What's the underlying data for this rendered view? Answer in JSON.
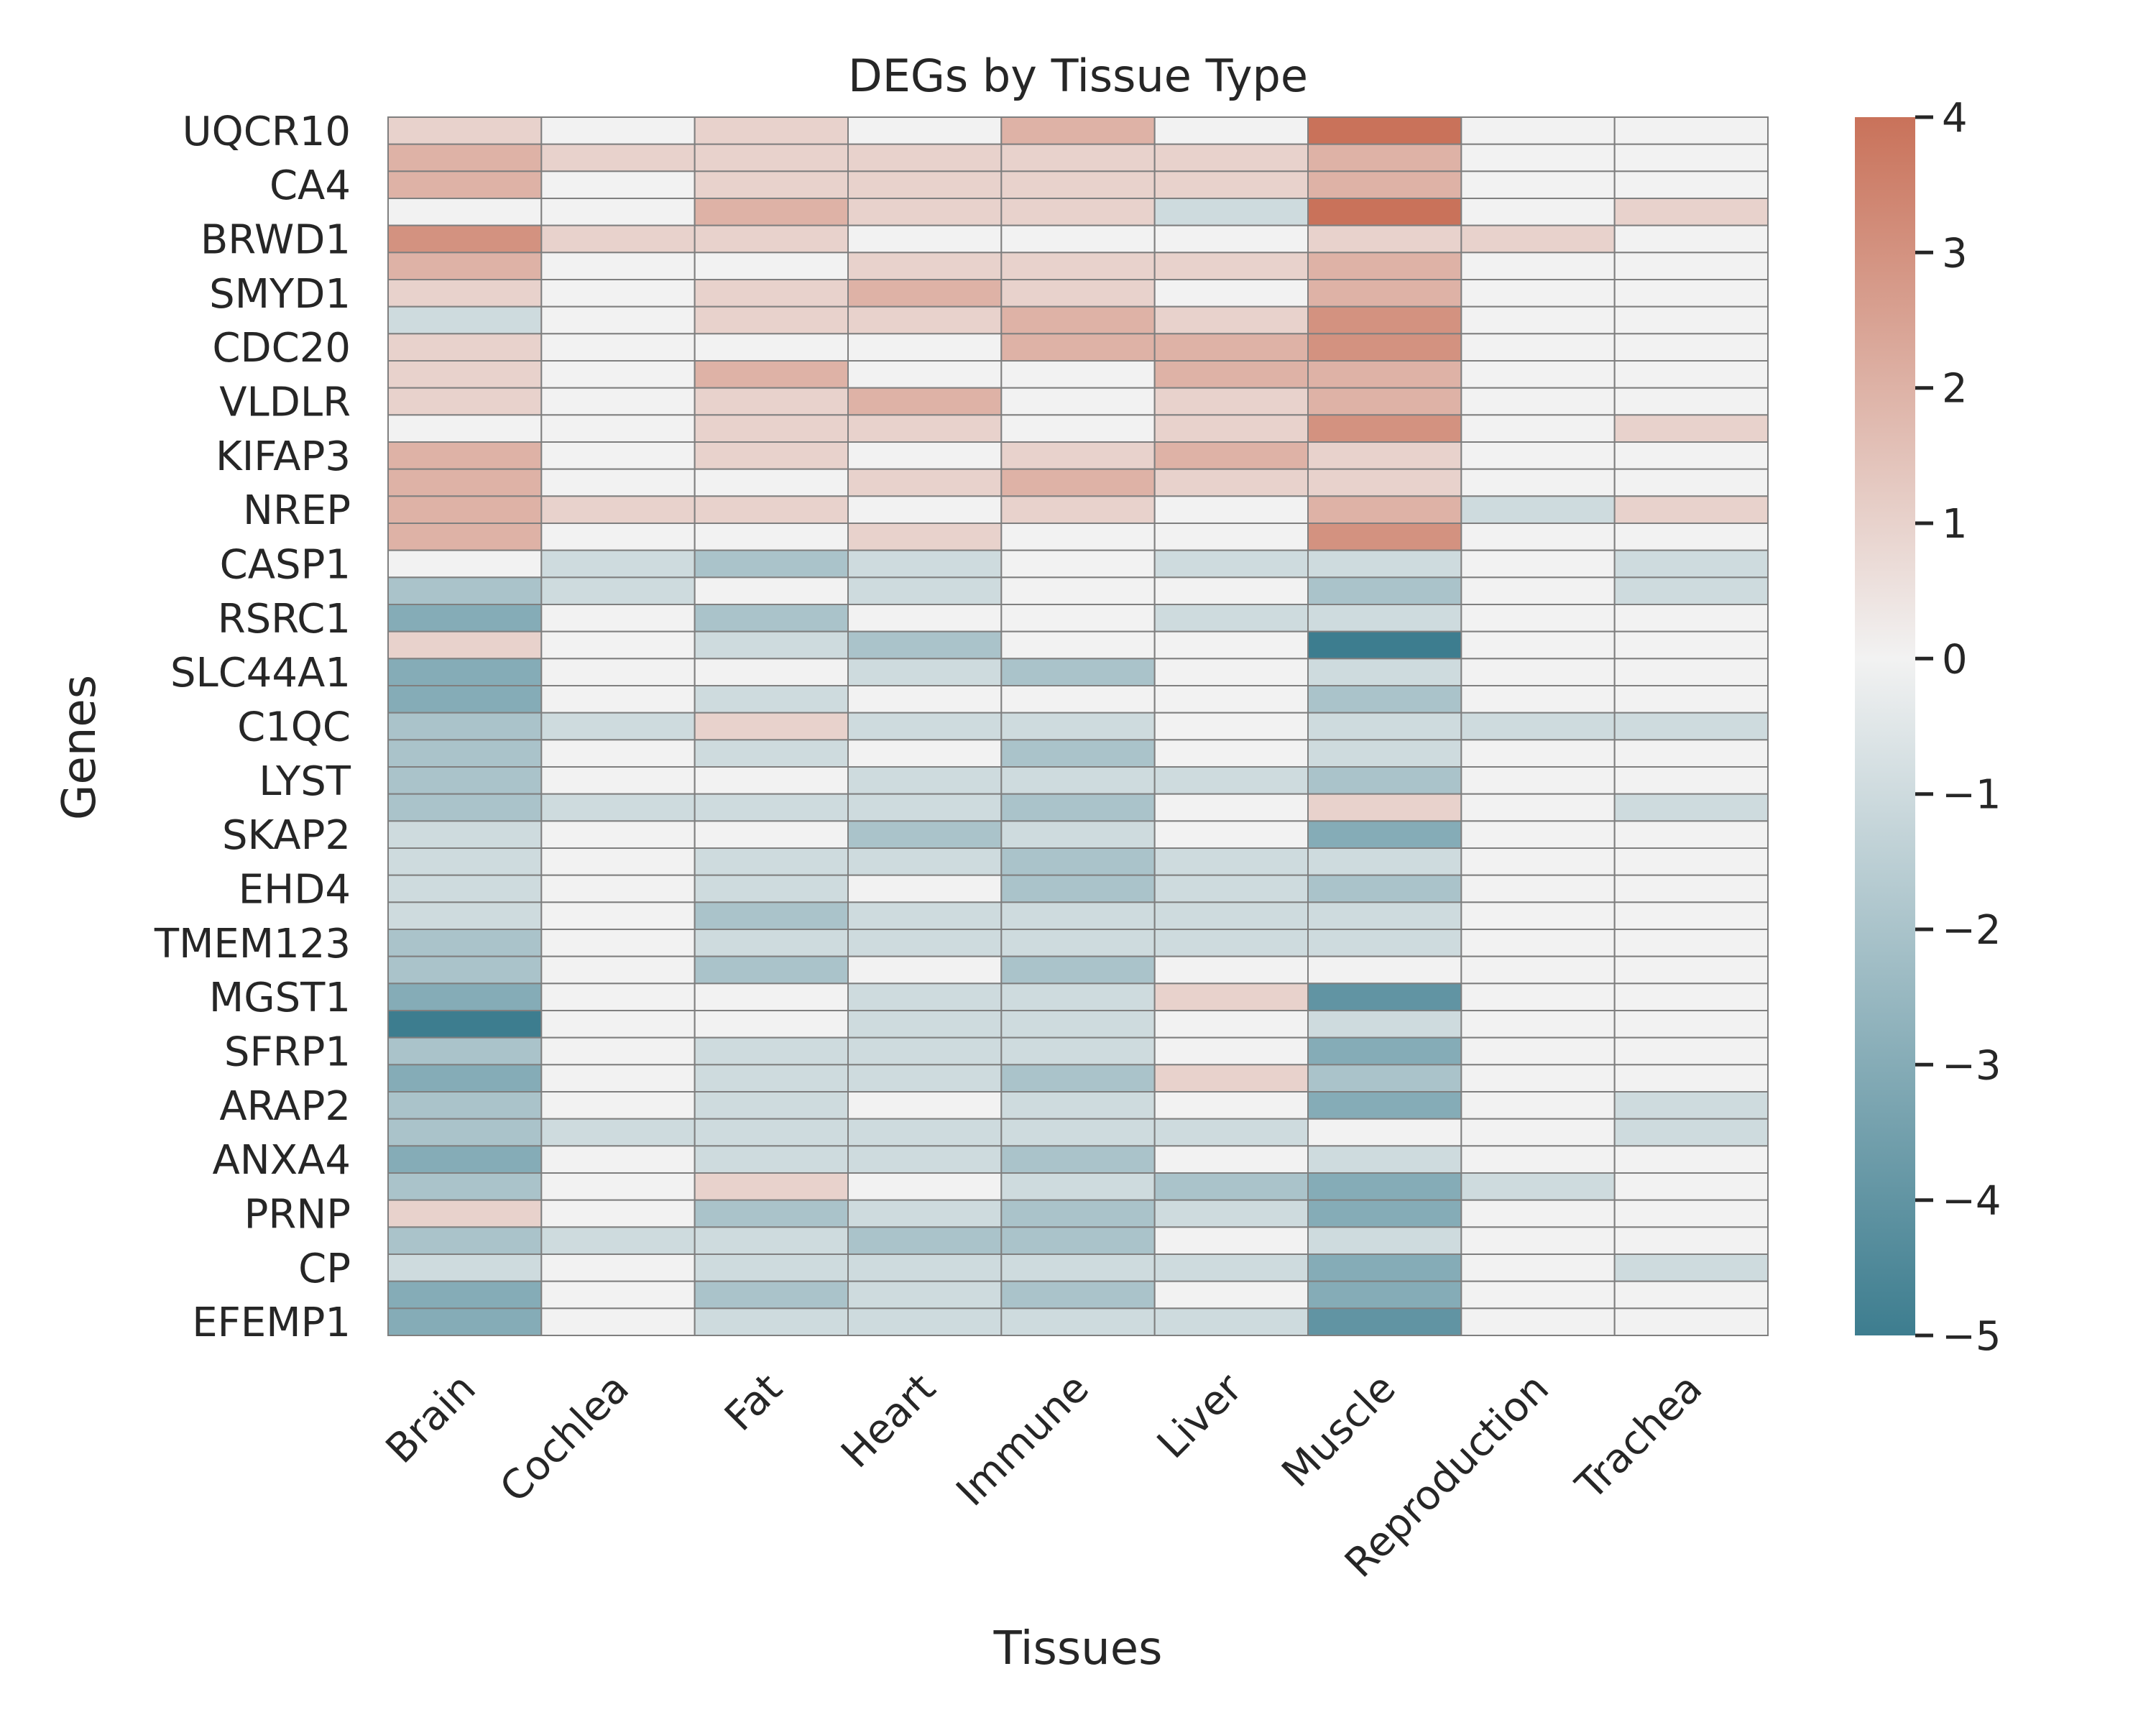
{
  "chart_data": {
    "type": "heatmap",
    "title": "DEGs by Tissue Type",
    "xlabel": "Tissues",
    "ylabel": "Genes",
    "x_categories": [
      "Brain",
      "Cochlea",
      "Fat",
      "Heart",
      "Immune",
      "Liver",
      "Muscle",
      "Reproduction",
      "Trachea"
    ],
    "y_tick_labels": [
      "UQCR10",
      "CA4",
      "BRWD1",
      "SMYD1",
      "CDC20",
      "VLDLR",
      "KIFAP3",
      "NREP",
      "CASP1",
      "RSRC1",
      "SLC44A1",
      "C1QC",
      "LYST",
      "SKAP2",
      "EHD4",
      "TMEM123",
      "MGST1",
      "SFRP1",
      "ARAP2",
      "ANXA4",
      "PRNP",
      "CP",
      "EFEMP1"
    ],
    "row_count": 45,
    "values": [
      [
        1,
        0,
        1,
        0,
        2,
        0,
        4,
        0,
        0
      ],
      [
        2,
        1,
        1,
        1,
        1,
        1,
        2,
        0,
        0
      ],
      [
        2,
        0,
        1,
        1,
        1,
        1,
        2,
        0,
        0
      ],
      [
        0,
        0,
        2,
        1,
        1,
        -1,
        4,
        0,
        1
      ],
      [
        3,
        1,
        1,
        0,
        0,
        0,
        1,
        1,
        0
      ],
      [
        2,
        0,
        0,
        1,
        1,
        1,
        2,
        0,
        0
      ],
      [
        1,
        0,
        1,
        2,
        1,
        0,
        2,
        0,
        0
      ],
      [
        -1,
        0,
        1,
        1,
        2,
        1,
        3,
        0,
        0
      ],
      [
        1,
        0,
        0,
        0,
        2,
        2,
        3,
        0,
        0
      ],
      [
        1,
        0,
        2,
        0,
        0,
        2,
        2,
        0,
        0
      ],
      [
        1,
        0,
        1,
        2,
        0,
        1,
        2,
        0,
        0
      ],
      [
        0,
        0,
        1,
        1,
        0,
        1,
        3,
        0,
        1
      ],
      [
        2,
        0,
        1,
        0,
        1,
        2,
        1,
        0,
        0
      ],
      [
        2,
        0,
        0,
        1,
        2,
        1,
        1,
        0,
        0
      ],
      [
        2,
        1,
        1,
        0,
        1,
        0,
        2,
        -1,
        1
      ],
      [
        2,
        0,
        0,
        1,
        0,
        0,
        3,
        0,
        0
      ],
      [
        0,
        -1,
        -2,
        -1,
        0,
        -1,
        -1,
        0,
        -1
      ],
      [
        -2,
        -1,
        0,
        -1,
        0,
        0,
        -2,
        0,
        -1
      ],
      [
        -3,
        0,
        -2,
        0,
        0,
        -1,
        -1,
        0,
        0
      ],
      [
        1,
        0,
        -1,
        -2,
        0,
        0,
        -5,
        0,
        0
      ],
      [
        -3,
        0,
        0,
        -1,
        -2,
        0,
        -1,
        0,
        0
      ],
      [
        -3,
        0,
        -1,
        0,
        0,
        0,
        -2,
        0,
        0
      ],
      [
        -2,
        -1,
        1,
        -1,
        -1,
        0,
        -1,
        -1,
        -1
      ],
      [
        -2,
        0,
        -1,
        0,
        -2,
        0,
        -1,
        0,
        0
      ],
      [
        -2,
        0,
        0,
        -1,
        -1,
        -1,
        -2,
        0,
        0
      ],
      [
        -2,
        -1,
        -1,
        -1,
        -2,
        0,
        1,
        0,
        -1
      ],
      [
        -1,
        0,
        0,
        -2,
        -1,
        0,
        -3,
        0,
        0
      ],
      [
        -1,
        0,
        -1,
        -1,
        -2,
        -1,
        -1,
        0,
        0
      ],
      [
        -1,
        0,
        -1,
        0,
        -2,
        -1,
        -2,
        0,
        0
      ],
      [
        -1,
        0,
        -2,
        -1,
        -1,
        -1,
        -1,
        0,
        0
      ],
      [
        -2,
        0,
        -1,
        -1,
        -1,
        -1,
        -1,
        0,
        0
      ],
      [
        -2,
        0,
        -2,
        0,
        -2,
        0,
        0,
        0,
        0
      ],
      [
        -3,
        0,
        0,
        -1,
        -1,
        1,
        -4,
        0,
        0
      ],
      [
        -5,
        0,
        0,
        -1,
        -1,
        0,
        -1,
        0,
        0
      ],
      [
        -2,
        0,
        -1,
        -1,
        -1,
        0,
        -3,
        0,
        0
      ],
      [
        -3,
        0,
        -1,
        -1,
        -2,
        1,
        -2,
        0,
        0
      ],
      [
        -2,
        0,
        -1,
        0,
        -1,
        0,
        -3,
        0,
        -1
      ],
      [
        -2,
        -1,
        -1,
        -1,
        -1,
        -1,
        0,
        0,
        -1
      ],
      [
        -3,
        0,
        -1,
        -1,
        -2,
        0,
        -1,
        0,
        0
      ],
      [
        -2,
        0,
        1,
        0,
        -1,
        -2,
        -3,
        -1,
        0
      ],
      [
        1,
        0,
        -2,
        -1,
        -2,
        -1,
        -3,
        0,
        0
      ],
      [
        -2,
        -1,
        -1,
        -2,
        -2,
        0,
        -1,
        0,
        0
      ],
      [
        -1,
        0,
        -1,
        -1,
        -1,
        -1,
        -3,
        0,
        -1
      ],
      [
        -3,
        0,
        -2,
        -1,
        -2,
        0,
        -3,
        0,
        0
      ],
      [
        -3,
        0,
        -1,
        -1,
        -1,
        -1,
        -4,
        0,
        0
      ]
    ],
    "color_scale": {
      "min": -5,
      "max": 4,
      "center": 0,
      "negative_color": "#3d7d8f",
      "center_color": "#f2f2f2",
      "positive_color": "#c9725a"
    },
    "colorbar_ticks": [
      "4",
      "3",
      "2",
      "1",
      "0",
      "−1",
      "−2",
      "−3",
      "−4",
      "−5"
    ],
    "cell_border_color": "#7f7f7f"
  }
}
